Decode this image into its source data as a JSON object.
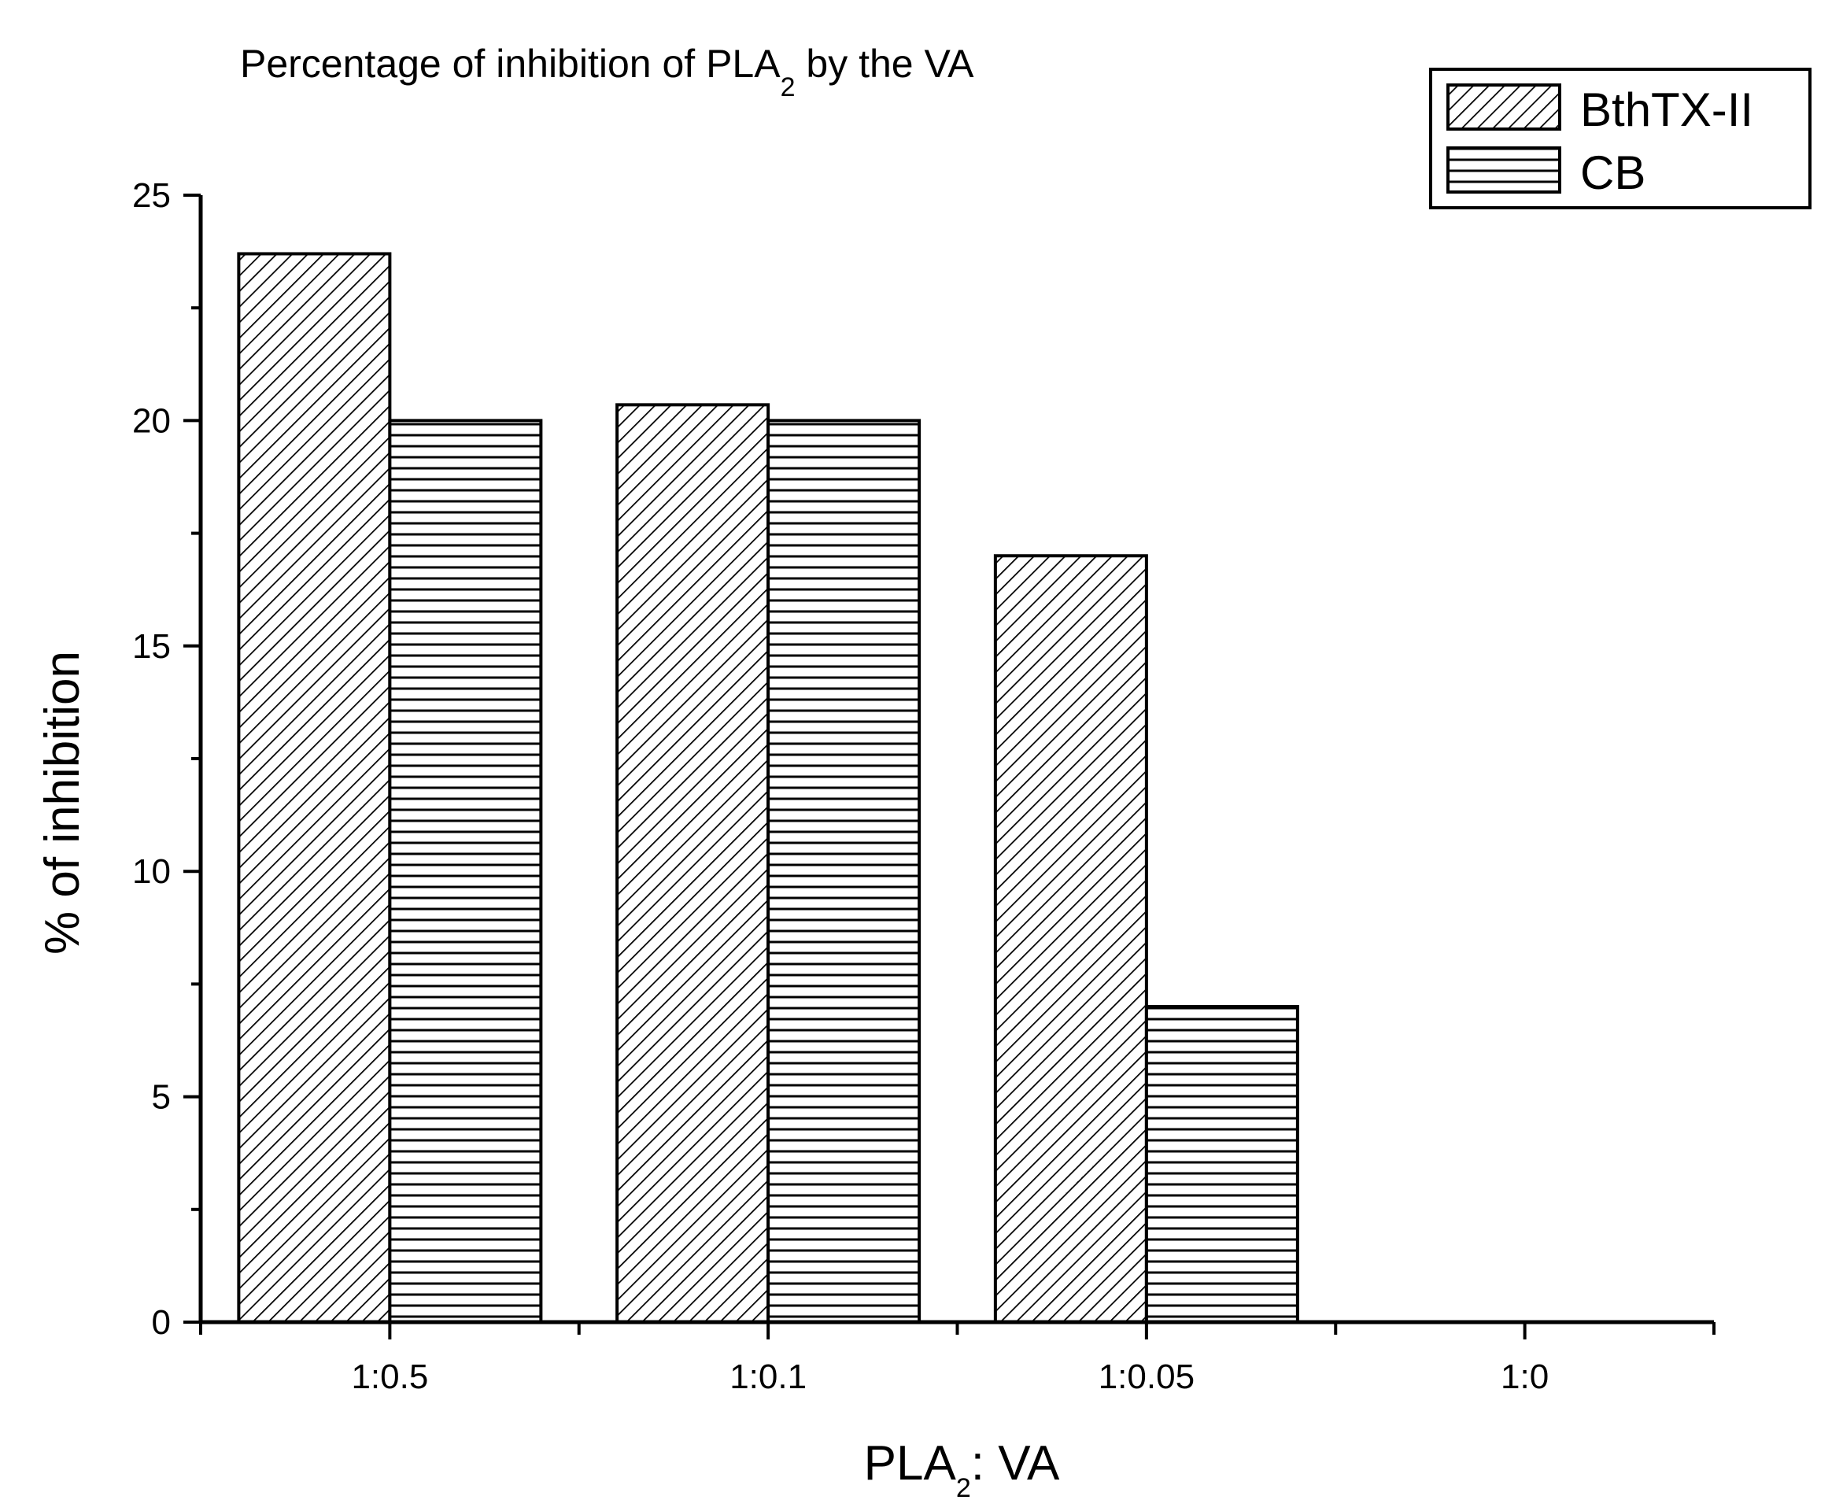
{
  "chart_data": {
    "type": "bar",
    "title": "Percentage of inhibition of PLA",
    "title_subscript": "2",
    "title_suffix": " by the VA",
    "xlabel": "PLA",
    "xlabel_subscript": "2",
    "xlabel_suffix": ": VA",
    "ylabel": "% of inhibition",
    "categories": [
      "1:0.5",
      "1:0.1",
      "1:0.05",
      "1:0"
    ],
    "series": [
      {
        "name": "BthTX-II",
        "pattern": "diagonal-hatch",
        "values": [
          23.7,
          20.35,
          17.0,
          0
        ]
      },
      {
        "name": "CB",
        "pattern": "horizontal-lines",
        "values": [
          20.0,
          20.0,
          7.0,
          0
        ]
      }
    ],
    "ylim": [
      0,
      25
    ],
    "yticks": [
      0,
      5,
      10,
      15,
      20,
      25
    ],
    "grid": false,
    "legend_position": "top-right",
    "colors": {
      "stroke": "#000000",
      "background": "#ffffff"
    }
  }
}
